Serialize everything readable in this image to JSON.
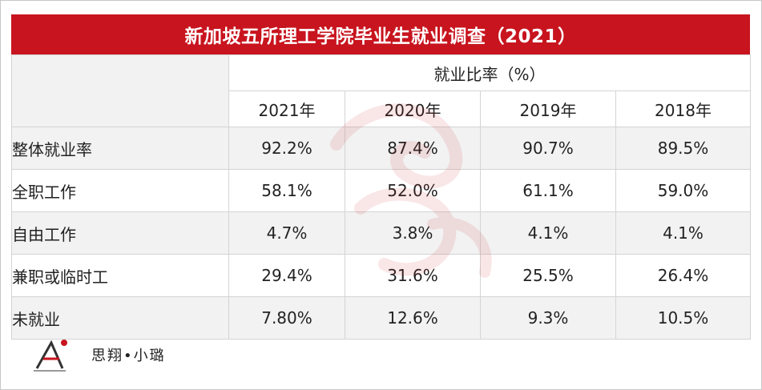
{
  "title": "新加坡五所理工学院毕业生就业调查（2021）",
  "table": {
    "super_header": "就业比率（%）",
    "years": [
      "2021年",
      "2020年",
      "2019年",
      "2018年"
    ],
    "rows": [
      {
        "label": "整体就业率",
        "values": [
          "92.2%",
          "87.4%",
          "90.7%",
          "89.5%"
        ]
      },
      {
        "label": "全职工作",
        "values": [
          "58.1%",
          "52.0%",
          "61.1%",
          "59.0%"
        ]
      },
      {
        "label": "自由工作",
        "values": [
          "4.7%",
          "3.8%",
          "4.1%",
          "4.1%"
        ]
      },
      {
        "label": "兼职或临时工",
        "values": [
          "29.4%",
          "31.6%",
          "25.5%",
          "26.4%"
        ]
      },
      {
        "label": "未就业",
        "values": [
          "7.80%",
          "12.6%",
          "9.3%",
          "10.5%"
        ]
      }
    ]
  },
  "footer": {
    "logo_icon": "logo-a-icon",
    "author": "思翔•小璐"
  },
  "colors": {
    "title_bg": "#c8141e",
    "row_shade": "#f2f2f2",
    "border": "#d4d4d4"
  }
}
